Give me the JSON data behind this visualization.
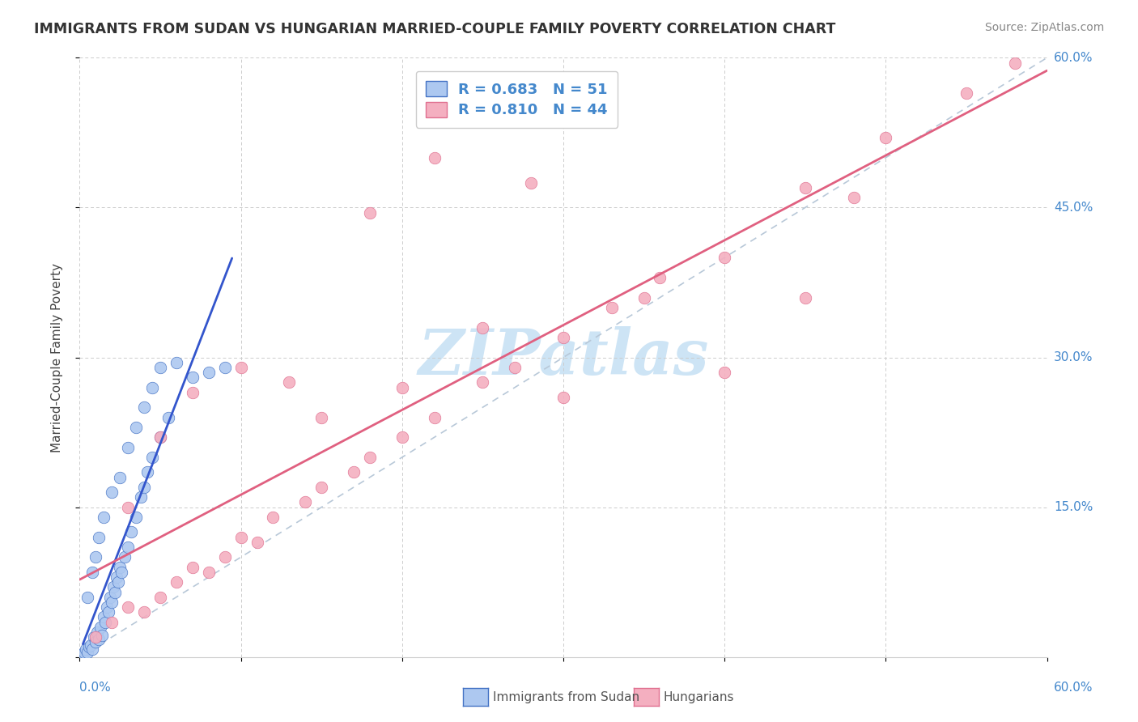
{
  "title": "IMMIGRANTS FROM SUDAN VS HUNGARIAN MARRIED-COUPLE FAMILY POVERTY CORRELATION CHART",
  "source": "Source: ZipAtlas.com",
  "ylabel": "Married-Couple Family Poverty",
  "ytick_vals": [
    0,
    15,
    30,
    45,
    60
  ],
  "ytick_labels": [
    "0.0%",
    "15.0%",
    "30.0%",
    "45.0%",
    "60.0%"
  ],
  "xlim": [
    0,
    60
  ],
  "ylim": [
    0,
    60
  ],
  "legend_r_sudan": "R = 0.683",
  "legend_n_sudan": "N = 51",
  "legend_r_hungarian": "R = 0.810",
  "legend_n_hungarian": "N = 44",
  "sudan_fill_color": "#adc8f0",
  "sudan_edge_color": "#4472c4",
  "hungarian_fill_color": "#f4afc0",
  "hungarian_edge_color": "#e07090",
  "sudan_line_color": "#3355cc",
  "hungarian_line_color": "#e06080",
  "diagonal_color": "#b8c8d8",
  "watermark_color": "#cde4f5",
  "watermark_text": "ZIPatlas",
  "sudan_points": [
    [
      0.2,
      0.3
    ],
    [
      0.3,
      0.5
    ],
    [
      0.4,
      0.8
    ],
    [
      0.5,
      0.5
    ],
    [
      0.6,
      1.0
    ],
    [
      0.7,
      1.2
    ],
    [
      0.8,
      0.8
    ],
    [
      0.9,
      2.0
    ],
    [
      1.0,
      1.5
    ],
    [
      1.1,
      2.5
    ],
    [
      1.2,
      1.8
    ],
    [
      1.3,
      3.0
    ],
    [
      1.4,
      2.2
    ],
    [
      1.5,
      4.0
    ],
    [
      1.6,
      3.5
    ],
    [
      1.7,
      5.0
    ],
    [
      1.8,
      4.5
    ],
    [
      1.9,
      6.0
    ],
    [
      2.0,
      5.5
    ],
    [
      2.1,
      7.0
    ],
    [
      2.2,
      6.5
    ],
    [
      2.3,
      8.0
    ],
    [
      2.4,
      7.5
    ],
    [
      2.5,
      9.0
    ],
    [
      2.6,
      8.5
    ],
    [
      2.8,
      10.0
    ],
    [
      3.0,
      11.0
    ],
    [
      3.2,
      12.5
    ],
    [
      3.5,
      14.0
    ],
    [
      3.8,
      16.0
    ],
    [
      4.0,
      17.0
    ],
    [
      4.2,
      18.5
    ],
    [
      4.5,
      20.0
    ],
    [
      5.0,
      22.0
    ],
    [
      5.5,
      24.0
    ],
    [
      0.5,
      6.0
    ],
    [
      0.8,
      8.5
    ],
    [
      1.0,
      10.0
    ],
    [
      1.2,
      12.0
    ],
    [
      1.5,
      14.0
    ],
    [
      2.0,
      16.5
    ],
    [
      2.5,
      18.0
    ],
    [
      3.0,
      21.0
    ],
    [
      3.5,
      23.0
    ],
    [
      4.0,
      25.0
    ],
    [
      4.5,
      27.0
    ],
    [
      5.0,
      29.0
    ],
    [
      6.0,
      29.5
    ],
    [
      7.0,
      28.0
    ],
    [
      8.0,
      28.5
    ],
    [
      9.0,
      29.0
    ]
  ],
  "hungarian_points": [
    [
      1.0,
      2.0
    ],
    [
      2.0,
      3.5
    ],
    [
      3.0,
      5.0
    ],
    [
      4.0,
      4.5
    ],
    [
      5.0,
      6.0
    ],
    [
      6.0,
      7.5
    ],
    [
      7.0,
      9.0
    ],
    [
      8.0,
      8.5
    ],
    [
      9.0,
      10.0
    ],
    [
      10.0,
      12.0
    ],
    [
      11.0,
      11.5
    ],
    [
      12.0,
      14.0
    ],
    [
      14.0,
      15.5
    ],
    [
      15.0,
      17.0
    ],
    [
      17.0,
      18.5
    ],
    [
      18.0,
      20.0
    ],
    [
      20.0,
      22.0
    ],
    [
      22.0,
      24.0
    ],
    [
      25.0,
      27.5
    ],
    [
      27.0,
      29.0
    ],
    [
      30.0,
      32.0
    ],
    [
      33.0,
      35.0
    ],
    [
      36.0,
      38.0
    ],
    [
      40.0,
      40.0
    ],
    [
      45.0,
      47.0
    ],
    [
      50.0,
      52.0
    ],
    [
      55.0,
      56.5
    ],
    [
      58.0,
      59.5
    ],
    [
      3.0,
      15.0
    ],
    [
      5.0,
      22.0
    ],
    [
      7.0,
      26.5
    ],
    [
      10.0,
      29.0
    ],
    [
      13.0,
      27.5
    ],
    [
      15.0,
      24.0
    ],
    [
      20.0,
      27.0
    ],
    [
      25.0,
      33.0
    ],
    [
      30.0,
      26.0
    ],
    [
      35.0,
      36.0
    ],
    [
      40.0,
      28.5
    ],
    [
      45.0,
      36.0
    ],
    [
      18.0,
      44.5
    ],
    [
      22.0,
      50.0
    ],
    [
      28.0,
      47.5
    ],
    [
      48.0,
      46.0
    ]
  ]
}
